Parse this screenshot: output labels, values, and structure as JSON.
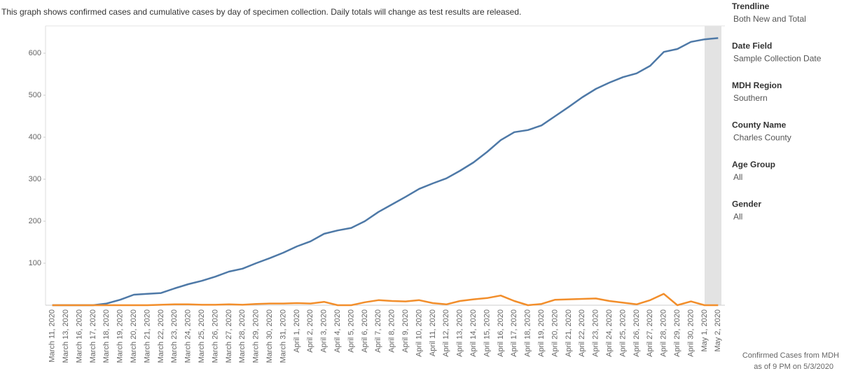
{
  "chart_data": {
    "type": "line",
    "title": "This graph shows confirmed cases and cumulative cases by day of specimen collection. Daily totals will change as test results are released.",
    "categories": [
      "March 11, 2020",
      "March 13, 2020",
      "March 16, 2020",
      "March 17, 2020",
      "March 18, 2020",
      "March 19, 2020",
      "March 20, 2020",
      "March 21, 2020",
      "March 22, 2020",
      "March 23, 2020",
      "March 24, 2020",
      "March 25, 2020",
      "March 26, 2020",
      "March 27, 2020",
      "March 28, 2020",
      "March 29, 2020",
      "March 30, 2020",
      "March 31, 2020",
      "April 1, 2020",
      "April 2, 2020",
      "April 3, 2020",
      "April 4, 2020",
      "April 5, 2020",
      "April 6, 2020",
      "April 7, 2020",
      "April 8, 2020",
      "April 9, 2020",
      "April 10, 2020",
      "April 11, 2020",
      "April 12, 2020",
      "April 13, 2020",
      "April 14, 2020",
      "April 15, 2020",
      "April 16, 2020",
      "April 17, 2020",
      "April 18, 2020",
      "April 19, 2020",
      "April 20, 2020",
      "April 21, 2020",
      "April 22, 2020",
      "April 23, 2020",
      "April 24, 2020",
      "April 25, 2020",
      "April 26, 2020",
      "April 27, 2020",
      "April 28, 2020",
      "April 29, 2020",
      "April 30, 2020",
      "May 1, 2020",
      "May 2, 2020"
    ],
    "series": [
      {
        "color": "#4e79a7",
        "values": [
          0,
          0,
          0,
          0,
          4,
          13,
          25,
          27,
          29,
          40,
          50,
          58,
          68,
          80,
          87,
          100,
          112,
          125,
          140,
          152,
          170,
          178,
          184,
          200,
          222,
          240,
          258,
          277,
          290,
          302,
          320,
          340,
          365,
          393,
          412,
          417,
          428,
          450,
          472,
          495,
          515,
          530,
          543,
          552,
          570,
          603,
          610,
          627,
          633,
          636
        ]
      },
      {
        "color": "#f28e2b",
        "values": [
          0,
          0,
          0,
          0,
          0,
          0,
          0,
          0,
          1,
          2,
          2,
          1,
          1,
          2,
          1,
          3,
          4,
          4,
          5,
          4,
          8,
          0,
          0,
          7,
          12,
          10,
          9,
          12,
          5,
          2,
          10,
          14,
          17,
          23,
          10,
          0,
          3,
          13,
          14,
          15,
          16,
          10,
          6,
          2,
          12,
          27,
          0,
          9,
          0,
          0
        ]
      }
    ],
    "ylim": [
      0,
      665
    ],
    "yticks": [
      100,
      200,
      300,
      400,
      500,
      600
    ],
    "grid": false
  },
  "filters": [
    {
      "label": "Trendline",
      "value": "Both New and Total"
    },
    {
      "label": "Date Field",
      "value": "Sample Collection Date"
    },
    {
      "label": "MDH Region",
      "value": "Southern"
    },
    {
      "label": "County Name",
      "value": "Charles County"
    },
    {
      "label": "Age Group",
      "value": "All"
    },
    {
      "label": "Gender",
      "value": "All"
    }
  ],
  "footnote": [
    "Confirmed Cases from MDH",
    "as of 9 PM on 5/3/2020"
  ]
}
